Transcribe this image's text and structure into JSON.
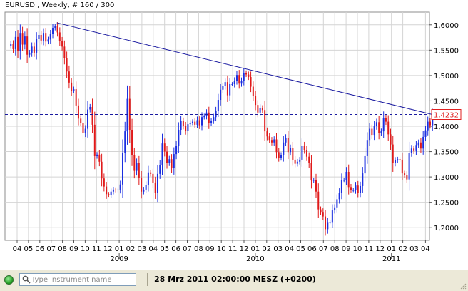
{
  "chart": {
    "title": "EURUSD , Weekly, # 160 / 300",
    "current_price_label": "1,4232",
    "current_price": 1.4232,
    "colors": {
      "up": "#1a2ee0",
      "down": "#e01a1a",
      "trendline": "#1a1aa0",
      "grid": "#d4d4d4",
      "price_box": "#e02020"
    }
  },
  "chart_data": {
    "type": "candlestick",
    "title": "EURUSD , Weekly, # 160 / 300",
    "y_ticks": [
      "1,6000",
      "1,5500",
      "1,5000",
      "1,4500",
      "1,4000",
      "1,3500",
      "1,3000",
      "1,2500",
      "1,2000"
    ],
    "y_tick_values": [
      1.6,
      1.55,
      1.5,
      1.45,
      1.4,
      1.35,
      1.3,
      1.25,
      1.2
    ],
    "ylim": [
      1.175,
      1.625
    ],
    "month_ticks": [
      "04",
      "05",
      "06",
      "07",
      "08",
      "09",
      "10",
      "11",
      "12",
      "01",
      "02",
      "03",
      "04",
      "05",
      "06",
      "07",
      "08",
      "09",
      "10",
      "11",
      "12",
      "01",
      "02",
      "03",
      "04",
      "05",
      "06",
      "07",
      "08",
      "09",
      "10",
      "11",
      "12",
      "01",
      "02",
      "03",
      "04"
    ],
    "year_labels": [
      {
        "label": "2009",
        "month_index": 9
      },
      {
        "label": "2010",
        "month_index": 21
      },
      {
        "label": "2011",
        "month_index": 33
      }
    ],
    "horizontal_line": 1.4232,
    "trendline": {
      "from": {
        "month_index": 3.5,
        "price": 1.604
      },
      "to": {
        "month_index": 36.6,
        "price": 1.4232
      }
    },
    "closes": [
      1.562,
      1.552,
      1.576,
      1.548,
      1.584,
      1.561,
      1.577,
      1.541,
      1.545,
      1.557,
      1.545,
      1.572,
      1.58,
      1.569,
      1.584,
      1.567,
      1.571,
      1.582,
      1.594,
      1.597,
      1.585,
      1.568,
      1.557,
      1.534,
      1.508,
      1.486,
      1.47,
      1.473,
      1.441,
      1.415,
      1.407,
      1.386,
      1.395,
      1.433,
      1.438,
      1.403,
      1.341,
      1.344,
      1.33,
      1.297,
      1.281,
      1.266,
      1.265,
      1.271,
      1.275,
      1.274,
      1.275,
      1.285,
      1.348,
      1.39,
      1.454,
      1.393,
      1.343,
      1.312,
      1.327,
      1.298,
      1.271,
      1.275,
      1.284,
      1.309,
      1.306,
      1.289,
      1.268,
      1.306,
      1.323,
      1.366,
      1.35,
      1.328,
      1.335,
      1.318,
      1.345,
      1.362,
      1.393,
      1.41,
      1.401,
      1.391,
      1.404,
      1.407,
      1.409,
      1.403,
      1.412,
      1.402,
      1.418,
      1.42,
      1.427,
      1.406,
      1.411,
      1.418,
      1.43,
      1.452,
      1.472,
      1.479,
      1.487,
      1.461,
      1.483,
      1.483,
      1.49,
      1.501,
      1.484,
      1.49,
      1.505,
      1.502,
      1.497,
      1.478,
      1.46,
      1.442,
      1.427,
      1.436,
      1.432,
      1.39,
      1.38,
      1.373,
      1.368,
      1.374,
      1.349,
      1.338,
      1.343,
      1.368,
      1.377,
      1.349,
      1.357,
      1.334,
      1.326,
      1.33,
      1.334,
      1.362,
      1.353,
      1.34,
      1.327,
      1.293,
      1.294,
      1.271,
      1.236,
      1.231,
      1.222,
      1.197,
      1.211,
      1.211,
      1.234,
      1.24,
      1.256,
      1.269,
      1.294,
      1.294,
      1.31,
      1.28,
      1.274,
      1.274,
      1.283,
      1.269,
      1.282,
      1.307,
      1.341,
      1.373,
      1.395,
      1.383,
      1.4,
      1.408,
      1.386,
      1.39,
      1.416,
      1.409,
      1.384,
      1.364,
      1.327,
      1.333,
      1.335,
      1.334,
      1.307,
      1.304,
      1.295,
      1.347,
      1.356,
      1.351,
      1.363,
      1.368,
      1.356,
      1.379,
      1.392,
      1.409,
      1.402,
      1.423
    ]
  },
  "status_bar": {
    "search_placeholder": "Type instrument name",
    "timestamp": "28 Mrz 2011 02:00:00  MESZ (+0200)"
  }
}
